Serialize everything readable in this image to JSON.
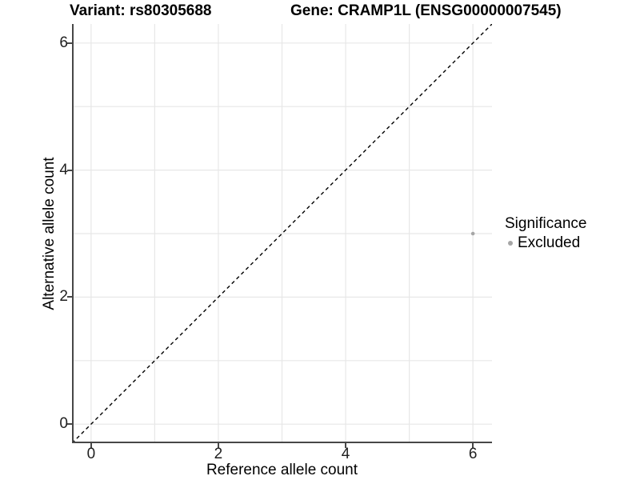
{
  "chart_data": {
    "type": "scatter",
    "title_left": "Variant: rs80305688",
    "title_right": "Gene: CRAMP1L (ENSG00000007545)",
    "xlabel": "Reference allele count",
    "ylabel": "Alternative allele count",
    "xlim": [
      -0.3,
      6.3
    ],
    "ylim": [
      -0.3,
      6.3
    ],
    "xticks": [
      0,
      2,
      4,
      6
    ],
    "yticks": [
      0,
      2,
      4,
      6
    ],
    "grid_values_x": [
      0,
      1,
      2,
      3,
      4,
      5,
      6
    ],
    "grid_values_y": [
      0,
      1,
      2,
      3,
      4,
      5,
      6
    ],
    "grid_on": true,
    "grid_color": "#e7e7e7",
    "axis_color": "#474747",
    "background_color": "#ffffff",
    "identity_line": {
      "style": "dashed",
      "color": "#000000",
      "x1": -0.3,
      "y1": -0.3,
      "x2": 6.3,
      "y2": 6.3
    },
    "series": [
      {
        "name": "Excluded",
        "color": "#a6a6a6",
        "point_radius": 2.3,
        "points": [
          {
            "x": 6,
            "y": 3
          }
        ]
      }
    ],
    "legend": {
      "title": "Significance",
      "position": "right",
      "entries": [
        {
          "label": "Excluded",
          "color": "#a6a6a6",
          "marker": "circle"
        }
      ]
    }
  }
}
